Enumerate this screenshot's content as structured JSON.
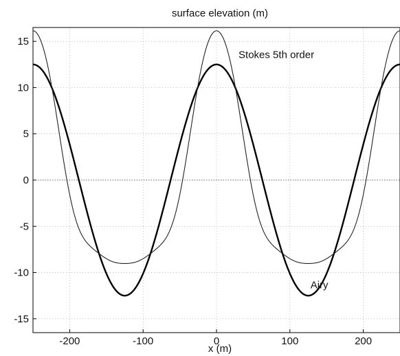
{
  "chart_data": {
    "type": "line",
    "title": "surface elevation (m)",
    "xlabel": "x (m)",
    "ylabel": "",
    "xlim": [
      -250,
      250
    ],
    "ylim": [
      -16.5,
      16.5
    ],
    "xticks": [
      -200,
      -100,
      0,
      100,
      200
    ],
    "yticks": [
      -15,
      -10,
      -5,
      0,
      5,
      10,
      15
    ],
    "xtick_labels": [
      "-200",
      "-100",
      "0",
      "100",
      "200"
    ],
    "ytick_labels": [
      "-15",
      "-10",
      "-5",
      "0",
      "5",
      "10",
      "15"
    ],
    "grid": true,
    "zero_line": true,
    "series": [
      {
        "name": "Airy",
        "line_weight": "thick",
        "color": "#000000",
        "wavelength": 250,
        "x": [
          -250,
          -237.5,
          -225,
          -212.5,
          -200,
          -187.5,
          -175,
          -162.5,
          -150,
          -137.5,
          -125,
          -112.5,
          -100,
          -87.5,
          -75,
          -62.5,
          -50,
          -37.5,
          -25,
          -12.5,
          0,
          12.5,
          25,
          37.5,
          50,
          62.5,
          75,
          87.5,
          100,
          112.5,
          125,
          137.5,
          150,
          162.5,
          175,
          187.5,
          200,
          212.5,
          225,
          237.5,
          250
        ],
        "y": [
          12.5,
          11.89,
          10.11,
          7.35,
          3.86,
          0,
          -3.86,
          -7.35,
          -10.11,
          -11.89,
          -12.5,
          -11.89,
          -10.11,
          -7.35,
          -3.86,
          0,
          3.86,
          7.35,
          10.11,
          11.89,
          12.5,
          11.89,
          10.11,
          7.35,
          3.86,
          0,
          -3.86,
          -7.35,
          -10.11,
          -11.89,
          -12.5,
          -11.89,
          -10.11,
          -7.35,
          -3.86,
          0,
          3.86,
          7.35,
          10.11,
          11.89,
          12.5
        ]
      },
      {
        "name": "Stokes 5th order",
        "line_weight": "thin",
        "color": "#222222",
        "wavelength": 250,
        "x": [
          -250,
          -237.5,
          -225,
          -212.5,
          -200,
          -187.5,
          -175,
          -162.5,
          -150,
          -137.5,
          -125,
          -112.5,
          -100,
          -87.5,
          -75,
          -62.5,
          -50,
          -37.5,
          -25,
          -12.5,
          0,
          12.5,
          25,
          37.5,
          50,
          62.5,
          75,
          87.5,
          100,
          112.5,
          125,
          137.5,
          150,
          162.5,
          175,
          187.5,
          200,
          212.5,
          225,
          237.5,
          250
        ],
        "y": [
          16.2,
          14.64,
          10.31,
          4.25,
          -1.59,
          -5.28,
          -6.89,
          -7.79,
          -8.52,
          -8.93,
          -9.0,
          -8.93,
          -8.52,
          -7.79,
          -6.89,
          -5.28,
          -1.59,
          4.25,
          10.31,
          14.64,
          16.2,
          14.64,
          10.31,
          4.25,
          -1.59,
          -5.28,
          -6.89,
          -7.79,
          -8.52,
          -8.93,
          -9.0,
          -8.93,
          -8.52,
          -7.79,
          -6.89,
          -5.28,
          -1.59,
          4.25,
          10.31,
          14.64,
          16.2
        ]
      }
    ],
    "annotations": [
      {
        "text": "Stokes 5th order",
        "x": 30,
        "y": 13.2
      },
      {
        "text": "Airy",
        "x": 128,
        "y": -11.7
      }
    ]
  }
}
